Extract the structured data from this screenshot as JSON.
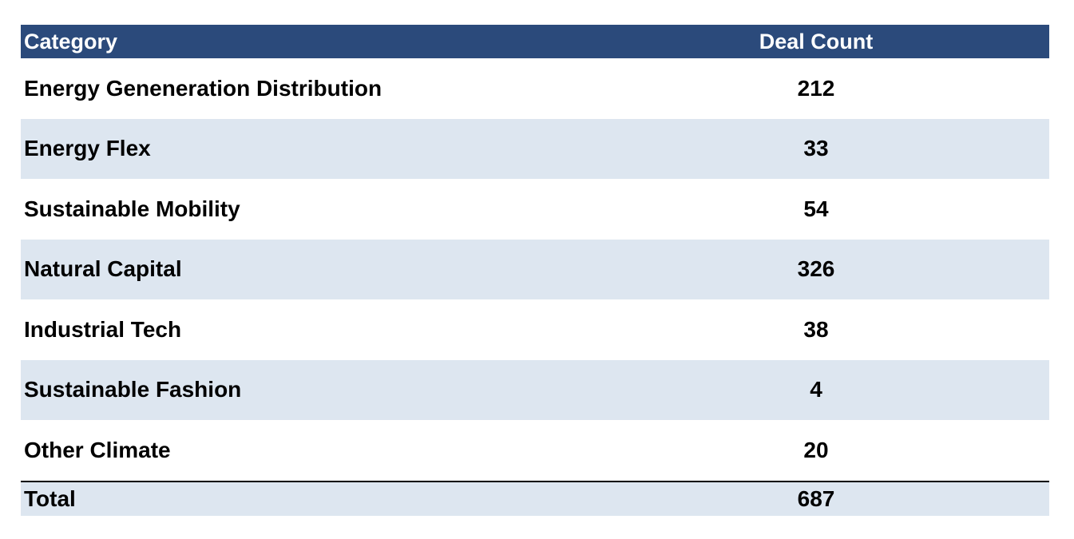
{
  "table": {
    "headers": {
      "category": "Category",
      "deal_count": "Deal Count"
    },
    "rows": [
      {
        "category": "Energy Geneneration Distribution",
        "deal_count": "212"
      },
      {
        "category": "Energy Flex",
        "deal_count": "33"
      },
      {
        "category": "Sustainable Mobility",
        "deal_count": "54"
      },
      {
        "category": "Natural Capital",
        "deal_count": "326"
      },
      {
        "category": "Industrial Tech",
        "deal_count": "38"
      },
      {
        "category": "Sustainable Fashion",
        "deal_count": "4"
      },
      {
        "category": "Other Climate",
        "deal_count": "20"
      }
    ],
    "total": {
      "label": "Total",
      "deal_count": "687"
    }
  },
  "colors": {
    "header_background": "#2b4a7b",
    "header_text": "#ffffff",
    "shaded_row": "#dde6f0",
    "text": "#000000"
  }
}
